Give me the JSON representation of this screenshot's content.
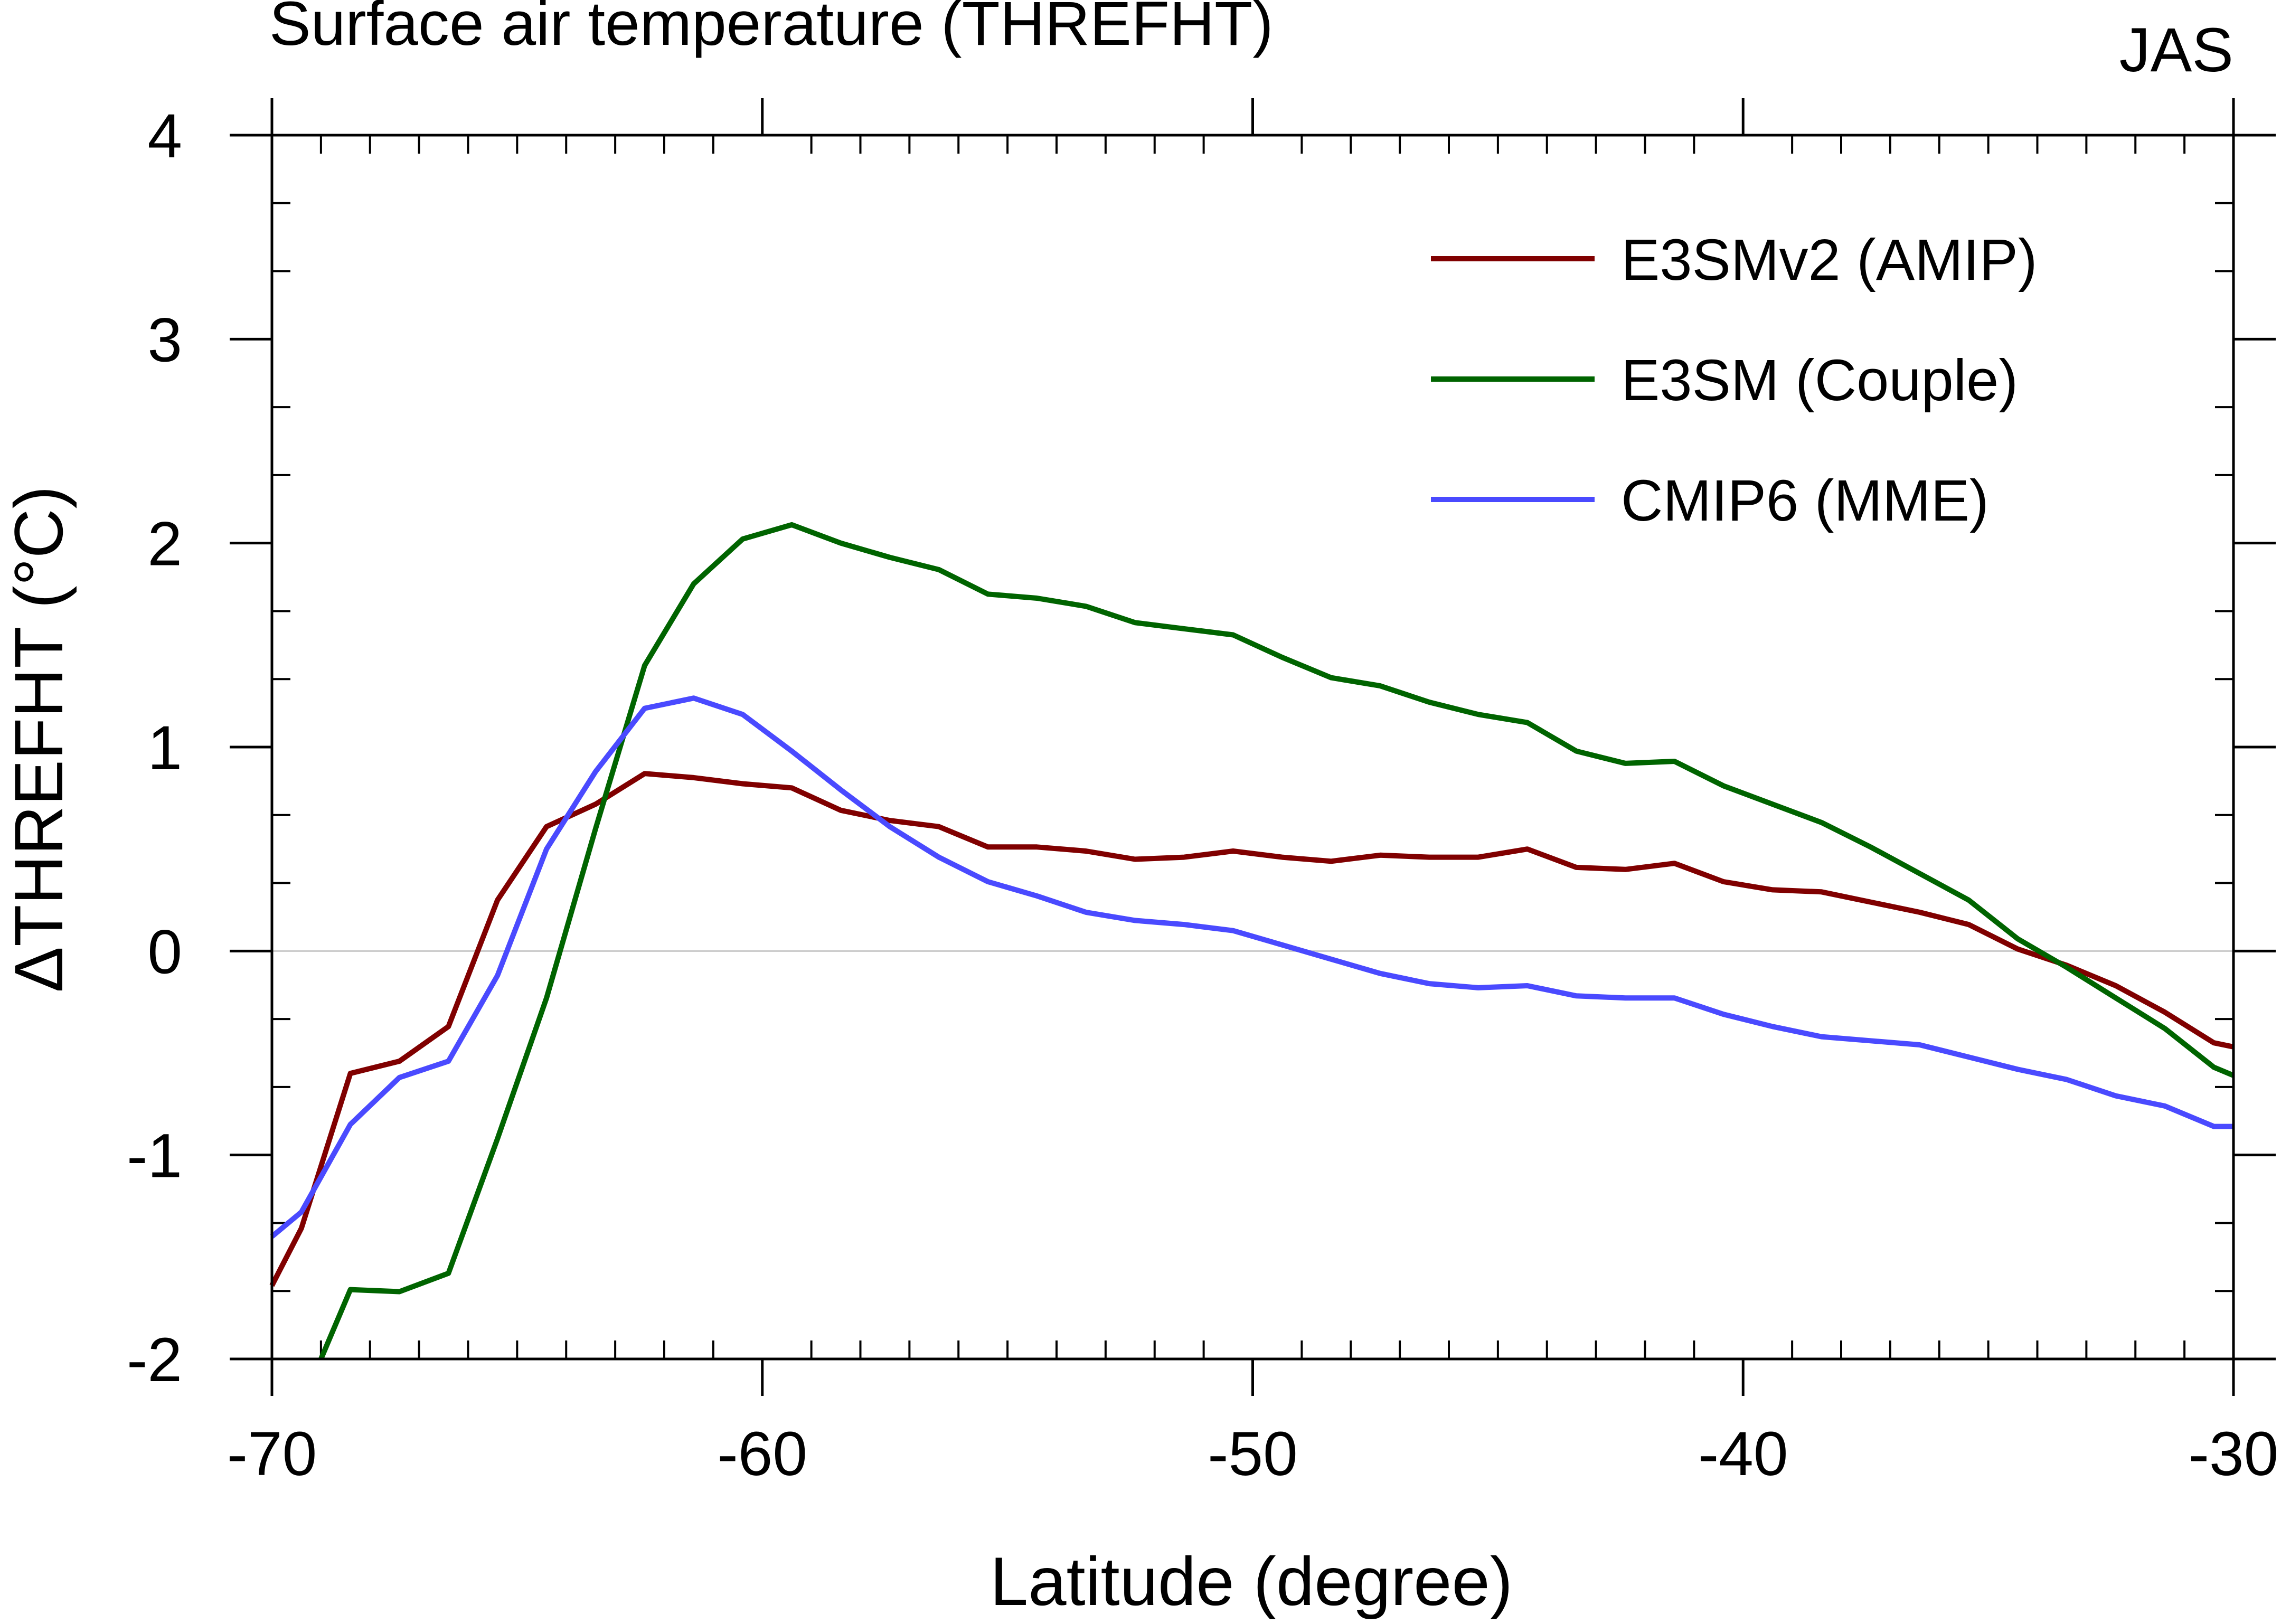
{
  "chart_data": {
    "type": "line",
    "title": "Surface air temperature (THREFHT)",
    "season_label": "JAS",
    "xlabel": "Latitude (degree)",
    "ylabel": "ΔTHREFHT (°C)",
    "xlim": [
      -70,
      -30
    ],
    "ylim": [
      -2,
      4
    ],
    "xticks": [
      -70,
      -60,
      -50,
      -40,
      -30
    ],
    "xtick_labels": [
      "-70",
      "-60",
      "-50",
      "-40",
      "-30"
    ],
    "yticks": [
      -2,
      -1,
      0,
      1,
      2,
      3,
      4
    ],
    "ytick_labels": [
      "-2",
      "-1",
      "0",
      "1",
      "2",
      "3",
      "4"
    ],
    "zero_line": true,
    "legend_position": "top-right",
    "series": [
      {
        "name": "E3SMv2 (AMIP)",
        "color": "#800000",
        "x": [
          -70,
          -69.4,
          -68.4,
          -67.4,
          -66.4,
          -65.4,
          -64.4,
          -63.4,
          -62.4,
          -61.4,
          -60.4,
          -59.4,
          -58.4,
          -57.4,
          -56.4,
          -55.4,
          -54.4,
          -53.4,
          -52.4,
          -51.4,
          -50.4,
          -49.4,
          -48.4,
          -47.4,
          -46.4,
          -45.4,
          -44.4,
          -43.4,
          -42.4,
          -41.4,
          -40.4,
          -39.4,
          -38.4,
          -37.4,
          -36.4,
          -35.4,
          -34.4,
          -33.4,
          -32.4,
          -31.4,
          -30.4,
          -30
        ],
        "y": [
          -1.64,
          -1.36,
          -0.6,
          -0.54,
          -0.37,
          0.25,
          0.61,
          0.72,
          0.87,
          0.85,
          0.82,
          0.8,
          0.69,
          0.64,
          0.61,
          0.51,
          0.51,
          0.49,
          0.45,
          0.46,
          0.49,
          0.46,
          0.44,
          0.47,
          0.46,
          0.46,
          0.5,
          0.41,
          0.4,
          0.43,
          0.34,
          0.3,
          0.29,
          0.24,
          0.19,
          0.13,
          0.01,
          -0.07,
          -0.17,
          -0.3,
          -0.45,
          -0.47
        ]
      },
      {
        "name": "E3SM (Couple)",
        "color": "#006400",
        "x": [
          -69,
          -68.4,
          -67.4,
          -66.4,
          -65.4,
          -64.4,
          -63.4,
          -62.4,
          -61.4,
          -60.4,
          -59.4,
          -58.4,
          -57.4,
          -56.4,
          -55.4,
          -54.4,
          -53.4,
          -52.4,
          -51.4,
          -50.4,
          -49.4,
          -48.4,
          -47.4,
          -46.4,
          -45.4,
          -44.4,
          -43.4,
          -42.4,
          -41.4,
          -40.4,
          -39.4,
          -38.4,
          -37.4,
          -36.4,
          -35.4,
          -34.4,
          -33.4,
          -32.4,
          -31.4,
          -30.4,
          -30
        ],
        "y": [
          -2.0,
          -1.66,
          -1.67,
          -1.58,
          -0.92,
          -0.23,
          0.6,
          1.4,
          1.8,
          2.02,
          2.09,
          2.0,
          1.93,
          1.87,
          1.75,
          1.73,
          1.69,
          1.61,
          1.58,
          1.55,
          1.44,
          1.34,
          1.3,
          1.22,
          1.16,
          1.12,
          0.98,
          0.92,
          0.93,
          0.81,
          0.72,
          0.63,
          0.51,
          0.38,
          0.25,
          0.06,
          -0.08,
          -0.23,
          -0.38,
          -0.57,
          -0.61
        ]
      },
      {
        "name": "CMIP6 (MME)",
        "color": "#4a4aff",
        "x": [
          -70,
          -69.4,
          -68.4,
          -67.4,
          -66.4,
          -65.4,
          -64.4,
          -63.4,
          -62.4,
          -61.4,
          -60.4,
          -59.4,
          -58.4,
          -57.4,
          -56.4,
          -55.4,
          -54.4,
          -53.4,
          -52.4,
          -51.4,
          -50.4,
          -49.4,
          -48.4,
          -47.4,
          -46.4,
          -45.4,
          -44.4,
          -43.4,
          -42.4,
          -41.4,
          -40.4,
          -39.4,
          -38.4,
          -37.4,
          -36.4,
          -35.4,
          -34.4,
          -33.4,
          -32.4,
          -31.4,
          -30.4,
          -30
        ],
        "y": [
          -1.4,
          -1.28,
          -0.85,
          -0.62,
          -0.54,
          -0.12,
          0.5,
          0.88,
          1.19,
          1.24,
          1.16,
          0.98,
          0.79,
          0.61,
          0.46,
          0.34,
          0.27,
          0.19,
          0.15,
          0.13,
          0.1,
          0.03,
          -0.04,
          -0.11,
          -0.16,
          -0.18,
          -0.17,
          -0.22,
          -0.23,
          -0.23,
          -0.31,
          -0.37,
          -0.42,
          -0.44,
          -0.46,
          -0.52,
          -0.58,
          -0.63,
          -0.71,
          -0.76,
          -0.86,
          -0.86
        ]
      }
    ]
  }
}
